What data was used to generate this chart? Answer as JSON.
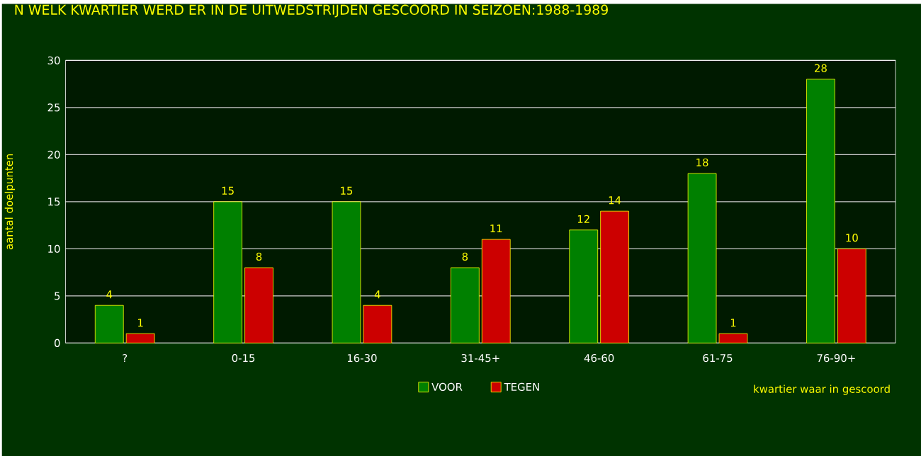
{
  "chart_data": {
    "type": "bar",
    "title": "N WELK KWARTIER WERD ER IN DE UITWEDSTRIJDEN GESCOORD IN SEIZOEN:1988-1989",
    "xlabel": "kwartier waar in gescoord",
    "ylabel": "aantal doelpunten",
    "categories": [
      "?",
      "0-15",
      "16-30",
      "31-45+",
      "46-60",
      "61-75",
      "76-90+"
    ],
    "series": [
      {
        "name": "VOOR",
        "color": "#008000",
        "values": [
          4,
          15,
          15,
          8,
          12,
          18,
          28
        ]
      },
      {
        "name": "TEGEN",
        "color": "#cc0000",
        "values": [
          1,
          8,
          4,
          11,
          14,
          1,
          10
        ]
      }
    ],
    "ylim": [
      0,
      30
    ],
    "yticks": [
      0,
      5,
      10,
      15,
      20,
      25,
      30
    ],
    "grid": "y",
    "legend": "bottom",
    "data_labels": true
  }
}
